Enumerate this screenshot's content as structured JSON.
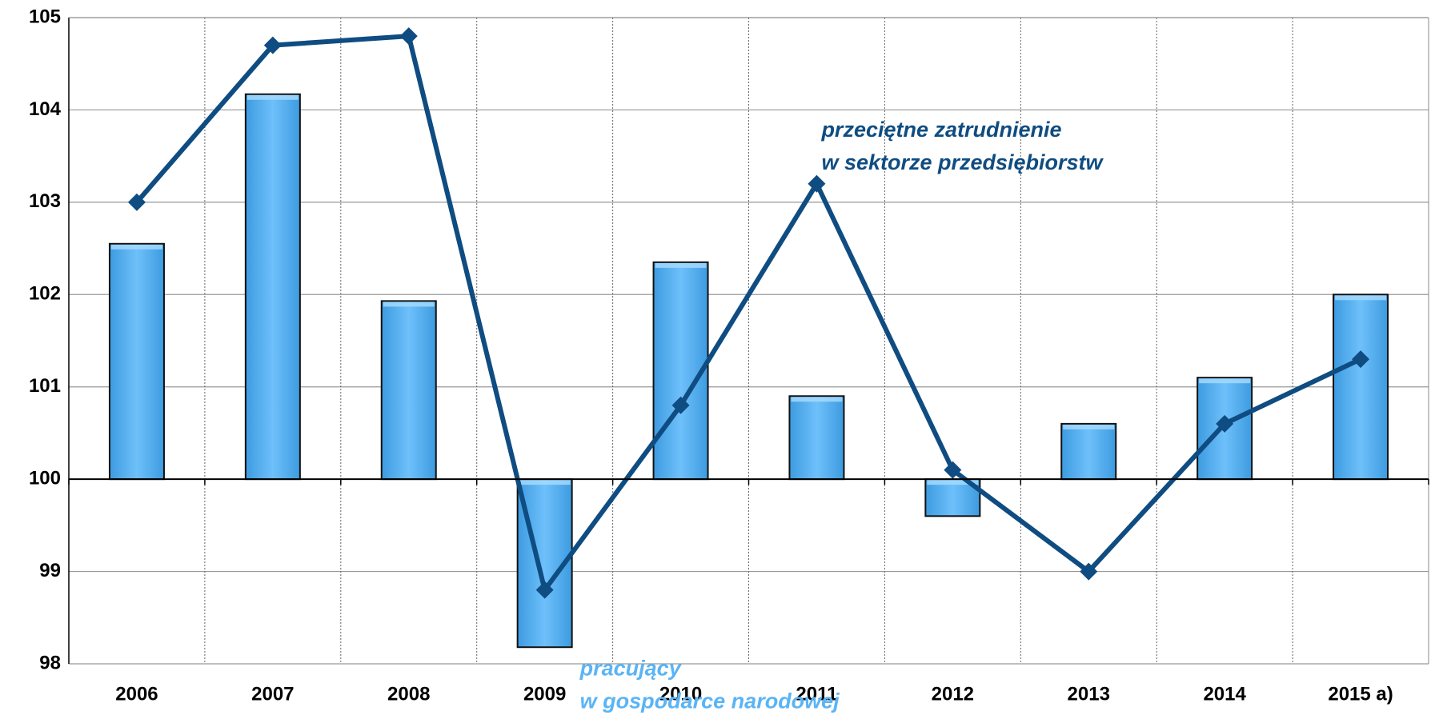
{
  "chart_data": {
    "type": "bar-line",
    "categories": [
      "2006",
      "2007",
      "2008",
      "2009",
      "2010",
      "2011",
      "2012",
      "2013",
      "2014",
      "2015 a)"
    ],
    "series": [
      {
        "name": [
          "pracujący",
          "w gospodarce narodowej"
        ],
        "type": "bar",
        "color": "#5ab4f5",
        "values": [
          102.55,
          104.17,
          101.93,
          98.18,
          102.35,
          100.9,
          99.6,
          100.6,
          101.1,
          102.0
        ]
      },
      {
        "name": [
          "przeciętne zatrudnienie",
          "w sektorze przedsiębiorstw"
        ],
        "type": "line",
        "color": "#0f4c81",
        "values": [
          103.0,
          104.7,
          104.8,
          98.8,
          100.8,
          103.2,
          100.1,
          99.0,
          100.6,
          101.3
        ]
      }
    ],
    "ylim": [
      98,
      105
    ],
    "yticks": [
      98,
      99,
      100,
      101,
      102,
      103,
      104,
      105
    ],
    "x_axis_crosses": 100,
    "grid": true
  }
}
